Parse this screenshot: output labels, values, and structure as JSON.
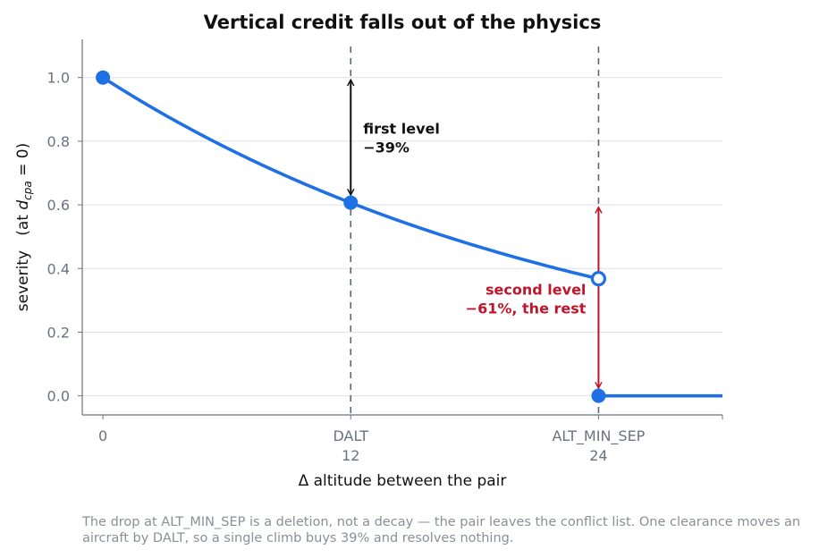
{
  "chart_data": {
    "type": "line",
    "title": "Vertical credit falls out of the physics",
    "xlabel": "Δ altitude between the pair",
    "ylabel": "severity   (at d_cpa = 0)",
    "ylabel_parts": {
      "main": "severity",
      "prefix": "(at ",
      "var": "d",
      "sub": "cpa",
      "suffix": " = 0)"
    },
    "xlim": [
      -1,
      30
    ],
    "ylim": [
      -0.06,
      1.12
    ],
    "x_ticks": [
      {
        "value": 0,
        "label": "0",
        "name": ""
      },
      {
        "value": 12,
        "label": "12",
        "name": "DALT"
      },
      {
        "value": 24,
        "label": "24",
        "name": "ALT_MIN_SEP"
      }
    ],
    "y_ticks": [
      0.0,
      0.2,
      0.4,
      0.6,
      0.8,
      1.0
    ],
    "y_tick_labels": [
      "0.0",
      "0.2",
      "0.4",
      "0.6",
      "0.8",
      "1.0"
    ],
    "grid": "horizontal",
    "series": [
      {
        "function": "exp(-x/24)",
        "x_range": [
          0,
          24
        ],
        "then": {
          "value": 0,
          "x_range": [
            24,
            30
          ]
        }
      }
    ],
    "points": [
      {
        "x": 0,
        "y": 1.0,
        "style": "filled"
      },
      {
        "x": 12,
        "y": 0.607,
        "style": "filled"
      },
      {
        "x": 24,
        "y": 0.368,
        "style": "open"
      },
      {
        "x": 24,
        "y": 0.0,
        "style": "filled"
      }
    ],
    "vlines": [
      12,
      24
    ],
    "annotations": [
      {
        "type": "arrow",
        "x": 12,
        "from": 1.0,
        "to": 0.607,
        "color": "#111111",
        "lines": [
          "first level",
          "−39%"
        ]
      },
      {
        "type": "arrow",
        "x": 24,
        "from": 0.6,
        "to": 0.0,
        "color": "#c0152a",
        "lines": [
          "second level",
          "−61%, the rest"
        ]
      }
    ],
    "colors": {
      "line": "#1f6fe5",
      "grid": "#dde1e8",
      "axis": "#6b7280",
      "vline": "#5a6578",
      "first": "#111111",
      "second": "#c0152a"
    }
  },
  "footnote": "The drop at ALT_MIN_SEP is a deletion, not a decay — the pair leaves the conflict list. One clearance moves an aircraft by DALT, so a single climb buys 39% and resolves nothing."
}
